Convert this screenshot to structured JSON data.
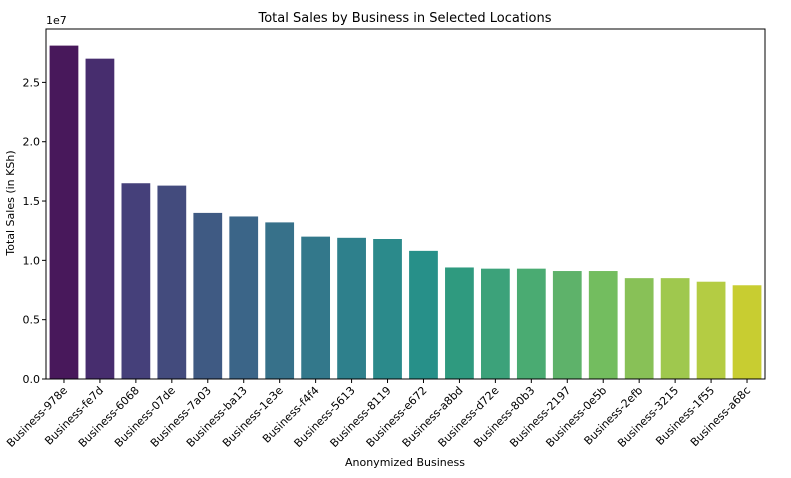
{
  "chart_data": {
    "type": "bar",
    "title": "Total Sales by Business in Selected Locations",
    "xlabel": "Anonymized Business",
    "ylabel": "Total Sales (in KSh)",
    "y_offset_label": "1e7",
    "ylim": [
      0,
      29500000
    ],
    "yticks": [
      0,
      5000000,
      10000000,
      15000000,
      20000000,
      25000000
    ],
    "ytick_labels": [
      "0.0",
      "0.5",
      "1.0",
      "1.5",
      "2.0",
      "2.5"
    ],
    "grid": false,
    "legend": "none",
    "categories": [
      "Business-978e",
      "Business-fe7d",
      "Business-6068",
      "Business-07de",
      "Business-7a03",
      "Business-ba13",
      "Business-1e3e",
      "Business-f4f4",
      "Business-5613",
      "Business-8119",
      "Business-e672",
      "Business-a8bd",
      "Business-d72e",
      "Business-80b3",
      "Business-2197",
      "Business-0e5b",
      "Business-2efb",
      "Business-3215",
      "Business-1f55",
      "Business-a68c"
    ],
    "values": [
      28100000,
      27000000,
      16500000,
      16300000,
      14000000,
      13700000,
      13200000,
      12000000,
      11900000,
      11800000,
      10800000,
      9400000,
      9300000,
      9300000,
      9100000,
      9100000,
      8500000,
      8500000,
      8200000,
      7900000
    ],
    "colors": [
      "#48185b",
      "#472d6e",
      "#45407a",
      "#434b7d",
      "#3f5a83",
      "#3b6588",
      "#37718a",
      "#33788b",
      "#2e808c",
      "#2b8a8b",
      "#279089",
      "#2f9a7f",
      "#3ca27a",
      "#4aab72",
      "#5eb26a",
      "#73bd5f",
      "#88c157",
      "#9fc84e",
      "#b4cc43",
      "#c8cd31"
    ]
  }
}
